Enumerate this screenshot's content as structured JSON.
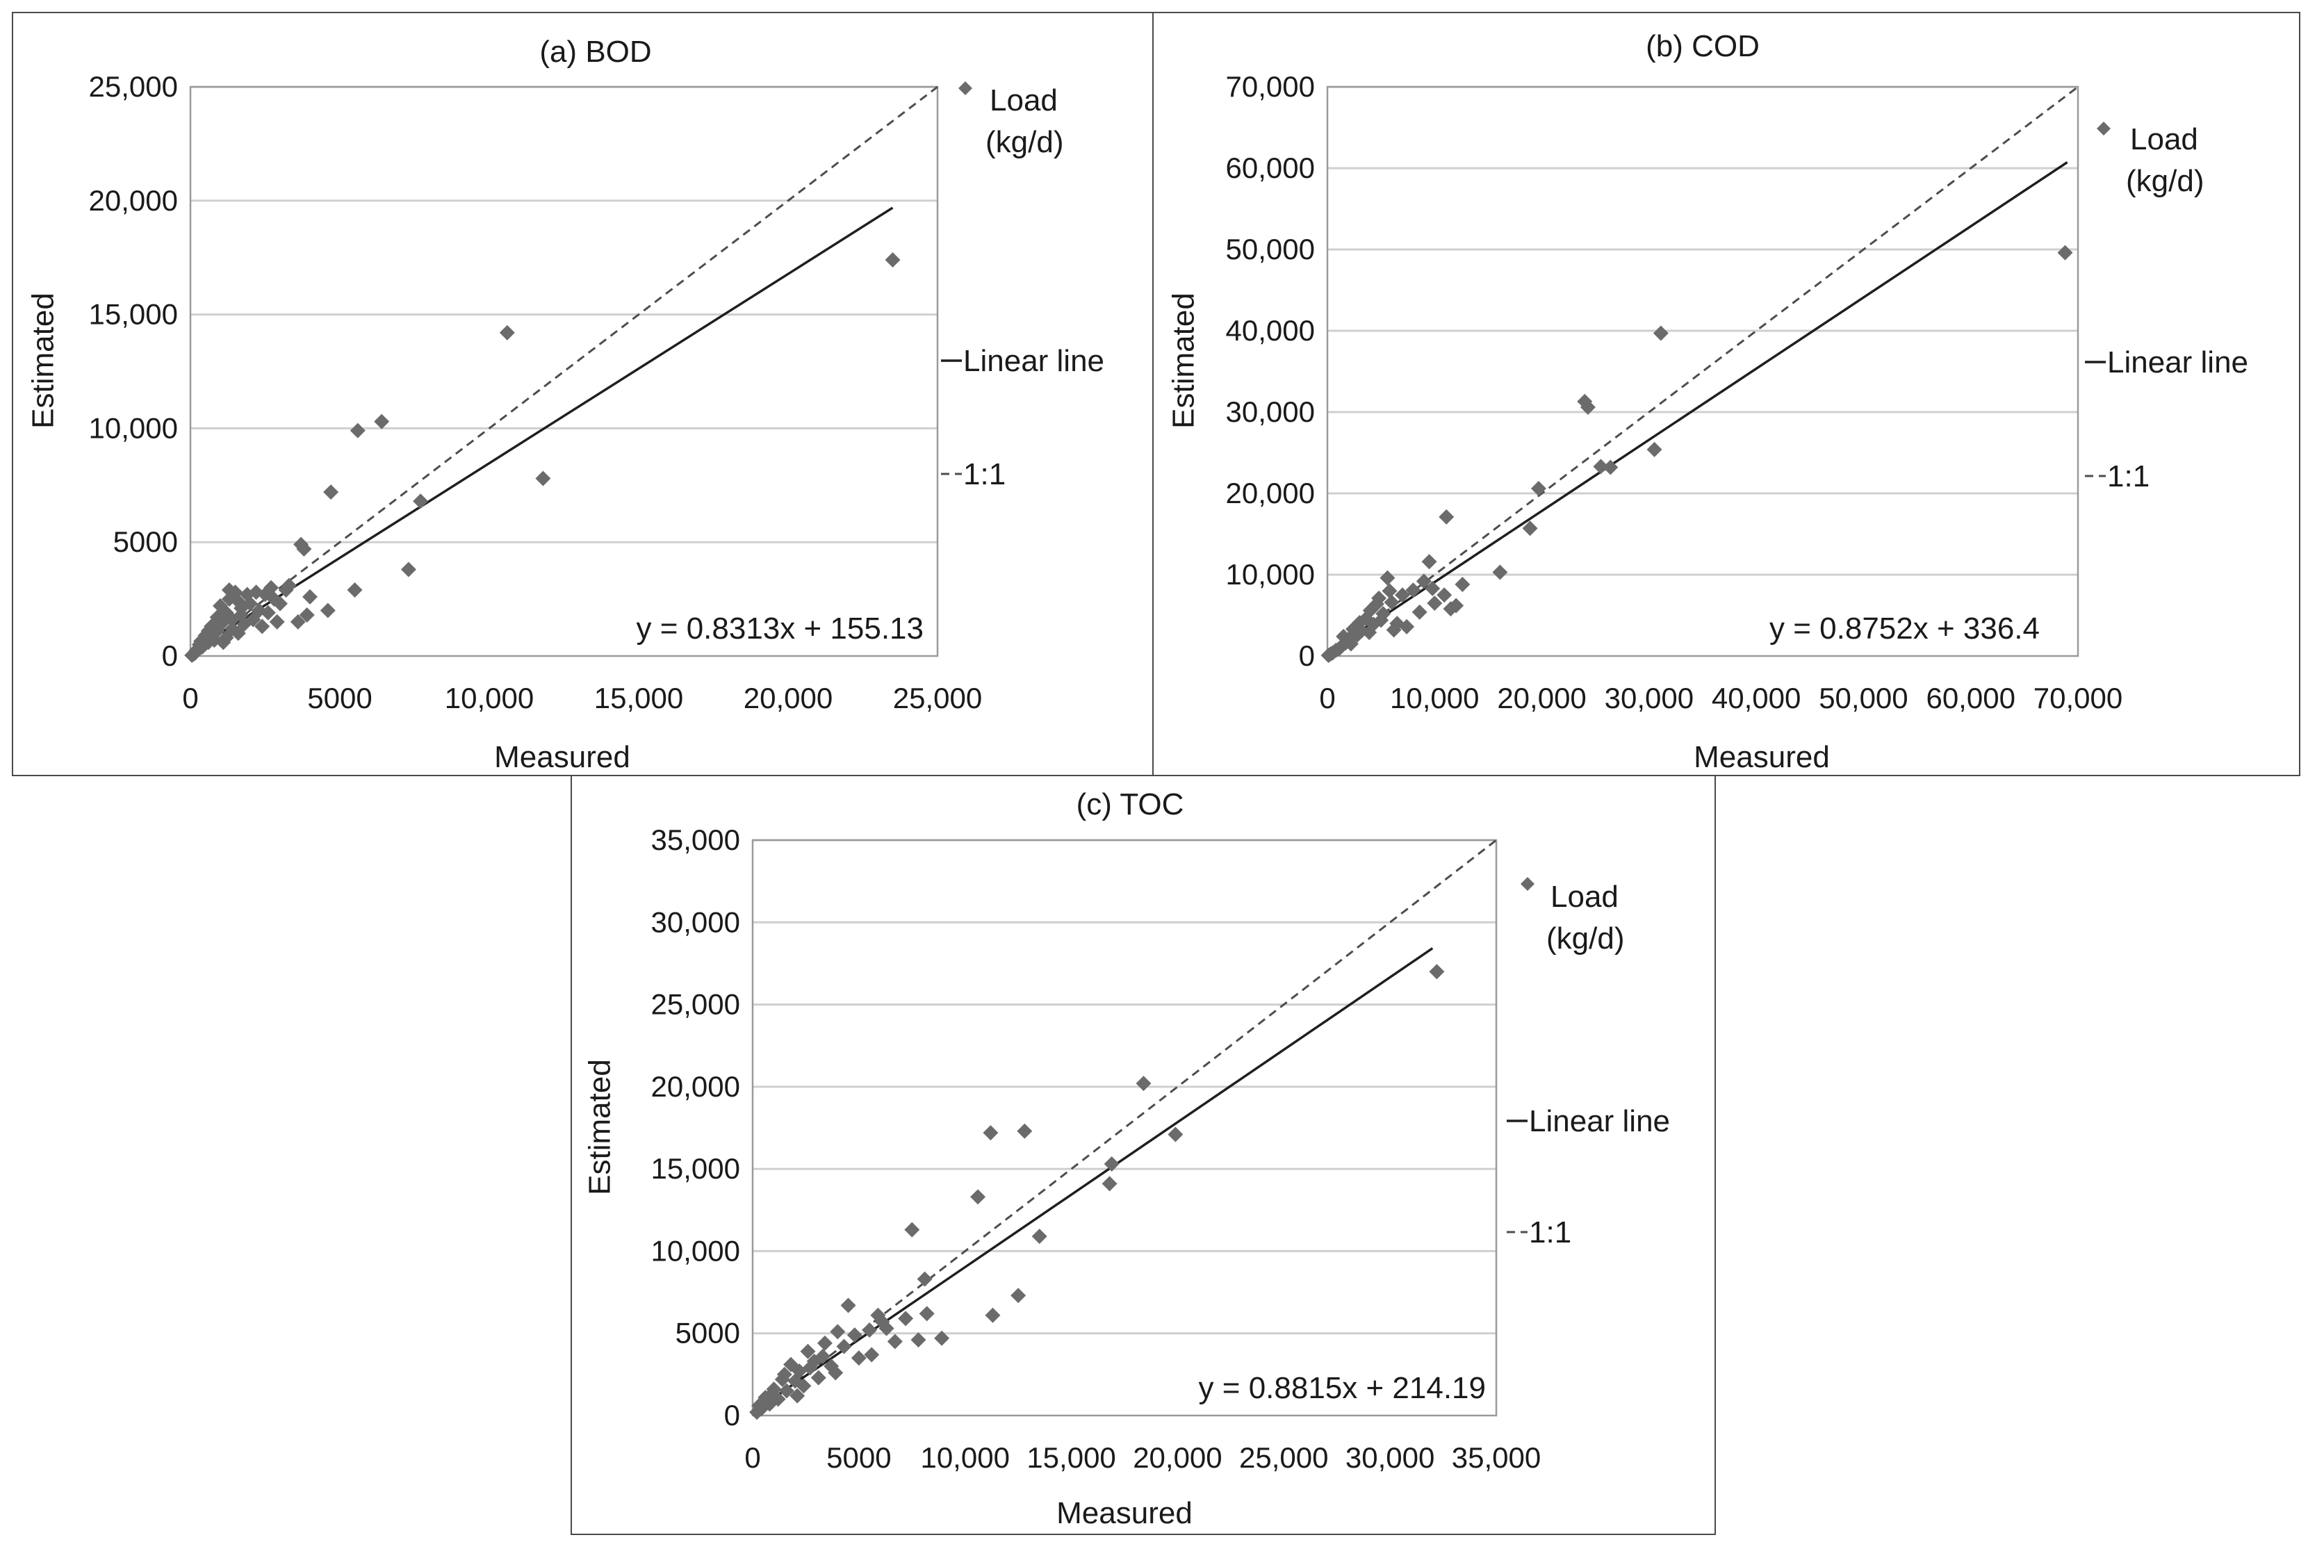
{
  "chart_data": [
    {
      "type": "scatter",
      "title": "(a) BOD",
      "xlabel": "Measured",
      "ylabel": "Estimated",
      "xlim": [
        0,
        25000
      ],
      "ylim": [
        0,
        25000
      ],
      "xticks": [
        "0",
        "5000",
        "10,000",
        "15,000",
        "20,000",
        "25,000"
      ],
      "yticks": [
        "0",
        "5000",
        "10,000",
        "15,000",
        "20,000",
        "25,000"
      ],
      "grid": true,
      "legend_position": "right",
      "legend": {
        "points": [
          "Load",
          "(kg/d)"
        ],
        "fit": "Linear line",
        "oneone": "1:1"
      },
      "equation": "y = 0.8313x + 155.13",
      "fit": {
        "slope": 0.8313,
        "intercept": 155.13,
        "x_end": 23500
      },
      "points": [
        [
          10600,
          14200
        ],
        [
          6400,
          10300
        ],
        [
          5600,
          9900
        ],
        [
          4700,
          7200
        ],
        [
          7700,
          6800
        ],
        [
          11800,
          7800
        ],
        [
          7300,
          3800
        ],
        [
          5500,
          2900
        ],
        [
          4600,
          2000
        ],
        [
          23500,
          17400
        ],
        [
          3700,
          4900
        ],
        [
          3800,
          4700
        ],
        [
          4000,
          2600
        ],
        [
          3600,
          1500
        ],
        [
          3900,
          1800
        ],
        [
          3200,
          2900
        ],
        [
          3000,
          2300
        ],
        [
          2800,
          2500
        ],
        [
          2600,
          1900
        ],
        [
          2500,
          2700
        ],
        [
          2300,
          2000
        ],
        [
          2100,
          1600
        ],
        [
          2000,
          2300
        ],
        [
          1800,
          1400
        ],
        [
          1700,
          2100
        ],
        [
          1600,
          1000
        ],
        [
          1500,
          2800
        ],
        [
          1400,
          1600
        ],
        [
          1300,
          2500
        ],
        [
          1200,
          800
        ],
        [
          1100,
          1500
        ],
        [
          1000,
          2200
        ],
        [
          900,
          1100
        ],
        [
          800,
          700
        ],
        [
          700,
          1300
        ],
        [
          600,
          600
        ],
        [
          500,
          900
        ],
        [
          400,
          400
        ],
        [
          300,
          500
        ],
        [
          200,
          250
        ],
        [
          150,
          120
        ],
        [
          100,
          80
        ],
        [
          1300,
          2900
        ],
        [
          1600,
          2400
        ],
        [
          1900,
          2700
        ],
        [
          2200,
          2800
        ],
        [
          2700,
          3000
        ],
        [
          1200,
          1900
        ],
        [
          900,
          1700
        ],
        [
          700,
          1000
        ],
        [
          2400,
          1300
        ],
        [
          1100,
          600
        ],
        [
          2900,
          1500
        ],
        [
          3300,
          3100
        ],
        [
          1700,
          1800
        ],
        [
          1400,
          1200
        ],
        [
          600,
          1100
        ],
        [
          350,
          650
        ],
        [
          250,
          300
        ],
        [
          50,
          30
        ]
      ]
    },
    {
      "type": "scatter",
      "title": "(b) COD",
      "xlabel": "Measured",
      "ylabel": "Estimated",
      "xlim": [
        0,
        70000
      ],
      "ylim": [
        0,
        70000
      ],
      "xticks": [
        "0",
        "10,000",
        "20,000",
        "30,000",
        "40,000",
        "50,000",
        "60,000",
        "70,000"
      ],
      "yticks": [
        "0",
        "10,000",
        "20,000",
        "30,000",
        "40,000",
        "50,000",
        "60,000",
        "70,000"
      ],
      "grid": true,
      "legend_position": "right",
      "legend": {
        "points": [
          "Load",
          "(kg/d)"
        ],
        "fit": "Linear line",
        "oneone": "1:1"
      },
      "equation": "y = 0.8752x + 336.4",
      "fit": {
        "slope": 0.8752,
        "intercept": 336.4,
        "x_end": 69000
      },
      "points": [
        [
          68800,
          49600
        ],
        [
          31100,
          39700
        ],
        [
          24000,
          31300
        ],
        [
          24300,
          30600
        ],
        [
          30500,
          25400
        ],
        [
          25500,
          23300
        ],
        [
          26400,
          23200
        ],
        [
          19700,
          20600
        ],
        [
          18900,
          15700
        ],
        [
          16100,
          10300
        ],
        [
          11100,
          17100
        ],
        [
          9500,
          11600
        ],
        [
          12600,
          8800
        ],
        [
          12000,
          6200
        ],
        [
          10900,
          7500
        ],
        [
          10000,
          6500
        ],
        [
          9000,
          9200
        ],
        [
          8000,
          8100
        ],
        [
          7000,
          7500
        ],
        [
          6000,
          6600
        ],
        [
          5600,
          9600
        ],
        [
          5200,
          5200
        ],
        [
          4800,
          7100
        ],
        [
          4300,
          3900
        ],
        [
          4000,
          5600
        ],
        [
          3600,
          4600
        ],
        [
          3200,
          3100
        ],
        [
          2800,
          2600
        ],
        [
          2400,
          3300
        ],
        [
          2000,
          2100
        ],
        [
          1700,
          1600
        ],
        [
          1400,
          1300
        ],
        [
          1100,
          900
        ],
        [
          800,
          700
        ],
        [
          500,
          400
        ],
        [
          300,
          250
        ],
        [
          6500,
          4000
        ],
        [
          5800,
          8000
        ],
        [
          4600,
          6400
        ],
        [
          3900,
          2900
        ],
        [
          3000,
          4100
        ],
        [
          2200,
          1500
        ],
        [
          7400,
          3600
        ],
        [
          8600,
          5400
        ],
        [
          6200,
          3200
        ],
        [
          5000,
          4400
        ],
        [
          1500,
          2400
        ],
        [
          9800,
          8300
        ],
        [
          11500,
          5800
        ],
        [
          100,
          80
        ]
      ]
    },
    {
      "type": "scatter",
      "title": "(c) TOC",
      "xlabel": "Measured",
      "ylabel": "Estimated",
      "xlim": [
        0,
        35000
      ],
      "ylim": [
        0,
        35000
      ],
      "xticks": [
        "0",
        "5000",
        "10,000",
        "15,000",
        "20,000",
        "25,000",
        "30,000",
        "35,000"
      ],
      "yticks": [
        "0",
        "5000",
        "10,000",
        "15,000",
        "20,000",
        "25,000",
        "30,000",
        "35,000"
      ],
      "grid": true,
      "legend_position": "right",
      "legend": {
        "points": [
          "Load",
          "(kg/d)"
        ],
        "fit": "Linear line",
        "oneone": "1:1"
      },
      "equation": "y = 0.8815x + 214.19",
      "fit": {
        "slope": 0.8815,
        "intercept": 214.19,
        "x_end": 32000
      },
      "points": [
        [
          32200,
          27000
        ],
        [
          18400,
          20200
        ],
        [
          19900,
          17100
        ],
        [
          11200,
          17200
        ],
        [
          12800,
          17300
        ],
        [
          10600,
          13300
        ],
        [
          16900,
          15300
        ],
        [
          16800,
          14100
        ],
        [
          13500,
          10900
        ],
        [
          7500,
          11300
        ],
        [
          12500,
          7300
        ],
        [
          11300,
          6100
        ],
        [
          8100,
          8300
        ],
        [
          8900,
          4700
        ],
        [
          8200,
          6200
        ],
        [
          7800,
          4600
        ],
        [
          7200,
          5900
        ],
        [
          6700,
          4500
        ],
        [
          6300,
          5300
        ],
        [
          5900,
          6100
        ],
        [
          5500,
          5200
        ],
        [
          5000,
          3500
        ],
        [
          4500,
          6700
        ],
        [
          4300,
          4200
        ],
        [
          4000,
          5100
        ],
        [
          3700,
          3000
        ],
        [
          3400,
          4400
        ],
        [
          3100,
          2300
        ],
        [
          2900,
          3300
        ],
        [
          2600,
          3900
        ],
        [
          2400,
          1800
        ],
        [
          2200,
          2700
        ],
        [
          2000,
          2100
        ],
        [
          1800,
          3100
        ],
        [
          1600,
          1500
        ],
        [
          1400,
          2200
        ],
        [
          1200,
          1000
        ],
        [
          1000,
          1600
        ],
        [
          800,
          700
        ],
        [
          600,
          1100
        ],
        [
          400,
          400
        ],
        [
          300,
          600
        ],
        [
          200,
          200
        ],
        [
          5600,
          3700
        ],
        [
          6100,
          5700
        ],
        [
          4800,
          4900
        ],
        [
          3900,
          2600
        ],
        [
          2700,
          2900
        ],
        [
          1500,
          2500
        ],
        [
          900,
          1300
        ],
        [
          2100,
          1200
        ],
        [
          3300,
          3600
        ]
      ]
    }
  ]
}
